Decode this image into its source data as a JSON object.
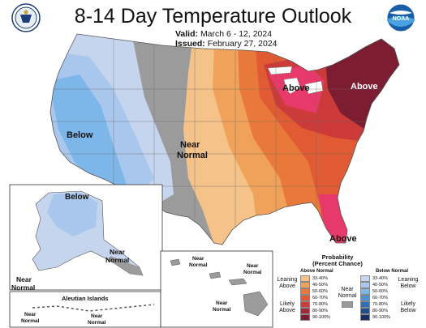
{
  "header": {
    "title": "8-14 Day Temperature Outlook",
    "valid_label": "Valid:",
    "valid_value": "March 6 - 12, 2024",
    "issued_label": "Issued:",
    "issued_value": "February 27, 2024"
  },
  "logos": {
    "left_icon": "department-of-commerce-seal-icon",
    "right_icon": "noaa-logo-icon",
    "noaa_text": "NOAA"
  },
  "map_labels": {
    "below_west": "Below",
    "near_normal_central_1": "Near",
    "near_normal_central_2": "Normal",
    "above_midwest": "Above",
    "above_northeast": "Above",
    "above_florida": "Above",
    "alaska_below": "Below",
    "alaska_near_1": "Near",
    "alaska_near_2": "Normal",
    "alaska_sw_near_1": "Near",
    "alaska_sw_near_2": "Normal",
    "aleutian_title": "Aleutian Islands",
    "aleutian_near_left_1": "Near",
    "aleutian_near_left_2": "Normal",
    "aleutian_near_right_1": "Near",
    "aleutian_near_right_2": "Normal",
    "hawaii_near_a_1": "Near",
    "hawaii_near_a_2": "Normal",
    "hawaii_near_b_1": "Near",
    "hawaii_near_b_2": "Normal",
    "hawaii_near_c_1": "Near",
    "hawaii_near_c_2": "Normal"
  },
  "legend": {
    "title_1": "Probability",
    "title_2": "(Percent Chance)",
    "above_head": "Above Normal",
    "below_head": "Below Normal",
    "leaning_above_1": "Leaning",
    "leaning_above_2": "Above",
    "likely_above_1": "Likely",
    "likely_above_2": "Above",
    "near_1": "Near",
    "near_2": "Normal",
    "leaning_below_1": "Leaning",
    "leaning_below_2": "Below",
    "likely_below_1": "Likely",
    "likely_below_2": "Below",
    "above_rows": [
      {
        "label": "33-40%",
        "color": "#f5c38a"
      },
      {
        "label": "40-50%",
        "color": "#f0a25a"
      },
      {
        "label": "50-60%",
        "color": "#e9793a"
      },
      {
        "label": "60-70%",
        "color": "#e05a34"
      },
      {
        "label": "70-80%",
        "color": "#cc3a3a"
      },
      {
        "label": "80-90%",
        "color": "#a42a3a"
      },
      {
        "label": "90-100%",
        "color": "#7d1d32"
      }
    ],
    "below_rows": [
      {
        "label": "33-40%",
        "color": "#c6d5ee"
      },
      {
        "label": "40-50%",
        "color": "#a9c6ec"
      },
      {
        "label": "50-60%",
        "color": "#7db6e8"
      },
      {
        "label": "60-70%",
        "color": "#4b93d4"
      },
      {
        "label": "70-80%",
        "color": "#2f6fb5"
      },
      {
        "label": "80-90%",
        "color": "#244d8f"
      },
      {
        "label": "90-100%",
        "color": "#1a2e63"
      }
    ],
    "near_color": "#9b9b9b"
  },
  "colors": {
    "near_normal": "#9b9b9b",
    "below_light": "#c6d5ee",
    "below_mid": "#a9c6ec",
    "below_strong": "#7db6e8",
    "above_1": "#f5c38a",
    "above_2": "#f0a25a",
    "above_3": "#e9793a",
    "above_4": "#e05a34",
    "above_5": "#cc3a3a",
    "above_6": "#a42a3a",
    "above_7": "#7d1d32",
    "florida_pink": "#e83a6a"
  }
}
